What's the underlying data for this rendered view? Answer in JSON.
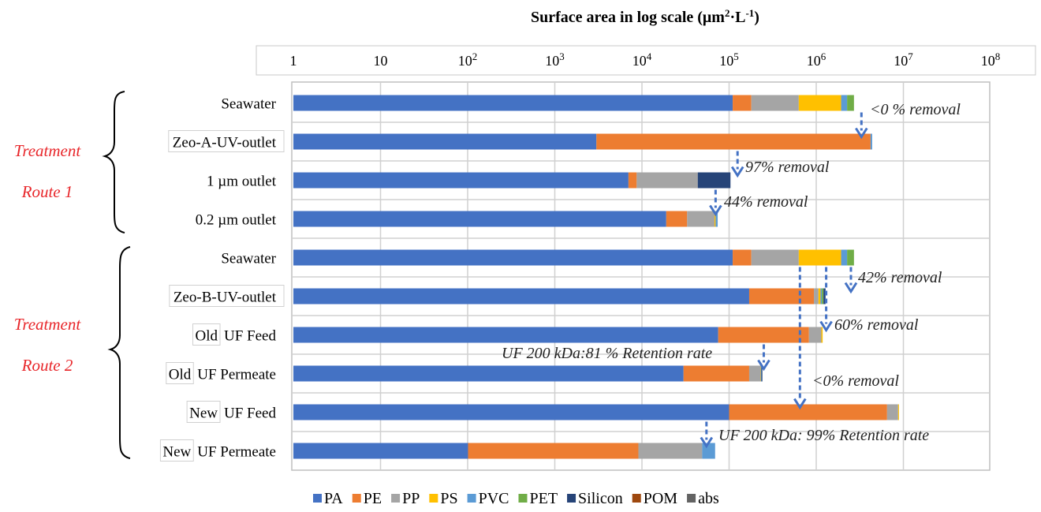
{
  "chart_data": {
    "type": "bar",
    "orientation": "horizontal",
    "stacked": true,
    "x_scale": "log",
    "title": "Surface area in log scale (μm²·L⁻¹)",
    "title_parts": {
      "main": "Surface area in log scale (μm",
      "sup1": "2",
      "mid": "·L",
      "sup2": "-1",
      "end": ")"
    },
    "xlim": [
      1,
      100000000
    ],
    "x_ticks": [
      {
        "base": "1",
        "exp": ""
      },
      {
        "base": "10",
        "exp": ""
      },
      {
        "base": "10",
        "exp": "2"
      },
      {
        "base": "10",
        "exp": "3"
      },
      {
        "base": "10",
        "exp": "4"
      },
      {
        "base": "10",
        "exp": "5"
      },
      {
        "base": "10",
        "exp": "6"
      },
      {
        "base": "10",
        "exp": "7"
      },
      {
        "base": "10",
        "exp": "8"
      }
    ],
    "grid": true,
    "legend_position": "bottom",
    "categories": [
      {
        "prefix": "",
        "label": "Seawater"
      },
      {
        "prefix": "",
        "label": "Zeo-A-UV-outlet"
      },
      {
        "prefix": "",
        "label": "1 µm outlet"
      },
      {
        "prefix": "",
        "label": "0.2 µm outlet"
      },
      {
        "prefix": "",
        "label": "Seawater"
      },
      {
        "prefix": "",
        "label": "Zeo-B-UV-outlet"
      },
      {
        "prefix": "Old",
        "label": "UF Feed"
      },
      {
        "prefix": "Old",
        "label": "UF Permeate"
      },
      {
        "prefix": "New",
        "label": "UF Feed"
      },
      {
        "prefix": "New",
        "label": "UF Permeate"
      }
    ],
    "series": [
      {
        "name": "PA",
        "color": "#4472c4",
        "values": [
          110000,
          3000,
          7000,
          19000,
          110000,
          170000,
          75000,
          30000,
          100000,
          100
        ]
      },
      {
        "name": "PE",
        "color": "#ed7d31",
        "values": [
          70000,
          4200000,
          1700,
          14000,
          70000,
          770000,
          750000,
          140000,
          6400000,
          9000
        ]
      },
      {
        "name": "PP",
        "color": "#a5a5a5",
        "values": [
          450000,
          0,
          35000,
          35000,
          450000,
          120000,
          320000,
          60000,
          2200000,
          40000
        ]
      },
      {
        "name": "PS",
        "color": "#ffc000",
        "values": [
          1300000,
          0,
          0,
          2000,
          1300000,
          60000,
          40000,
          2000,
          200000,
          0
        ]
      },
      {
        "name": "PVC",
        "color": "#5b9bd5",
        "values": [
          330000,
          180000,
          0,
          4000,
          330000,
          40000,
          0,
          3000,
          0,
          20000
        ]
      },
      {
        "name": "PET",
        "color": "#70ad47",
        "values": [
          450000,
          0,
          0,
          0,
          450000,
          50000,
          0,
          0,
          0,
          0
        ]
      },
      {
        "name": "Silicon",
        "color": "#264478",
        "values": [
          0,
          0,
          60000,
          0,
          0,
          70000,
          0,
          6000,
          0,
          0
        ]
      },
      {
        "name": "POM",
        "color": "#9e480e",
        "values": [
          0,
          0,
          0,
          0,
          0,
          0,
          0,
          0,
          0,
          0
        ]
      },
      {
        "name": "abs",
        "color": "#636363",
        "values": [
          0,
          0,
          0,
          0,
          0,
          0,
          0,
          0,
          0,
          0
        ]
      }
    ],
    "routes": [
      {
        "line1": "Treatment",
        "line2": "Route 1"
      },
      {
        "line1": "Treatment",
        "line2": "Route 2"
      }
    ],
    "annotations": [
      {
        "text": "<0 % removal",
        "x_value": 3300000
      },
      {
        "text": "97% removal",
        "x_value": 125000
      },
      {
        "text": "44% removal",
        "x_value": 70000
      },
      {
        "text": "42% removal",
        "x_value": 2500000
      },
      {
        "text": "60% removal",
        "x_value": 1300000
      },
      {
        "text": "UF 200 kDa:81 % Retention rate",
        "x_value": 250000
      },
      {
        "text": "<0% removal",
        "x_value": 650000
      },
      {
        "text": "UF 200 kDa: 99% Retention rate",
        "x_value": 55000
      }
    ],
    "colors": {
      "route_label": "#e8262a",
      "arrow": "#4472c4"
    }
  }
}
